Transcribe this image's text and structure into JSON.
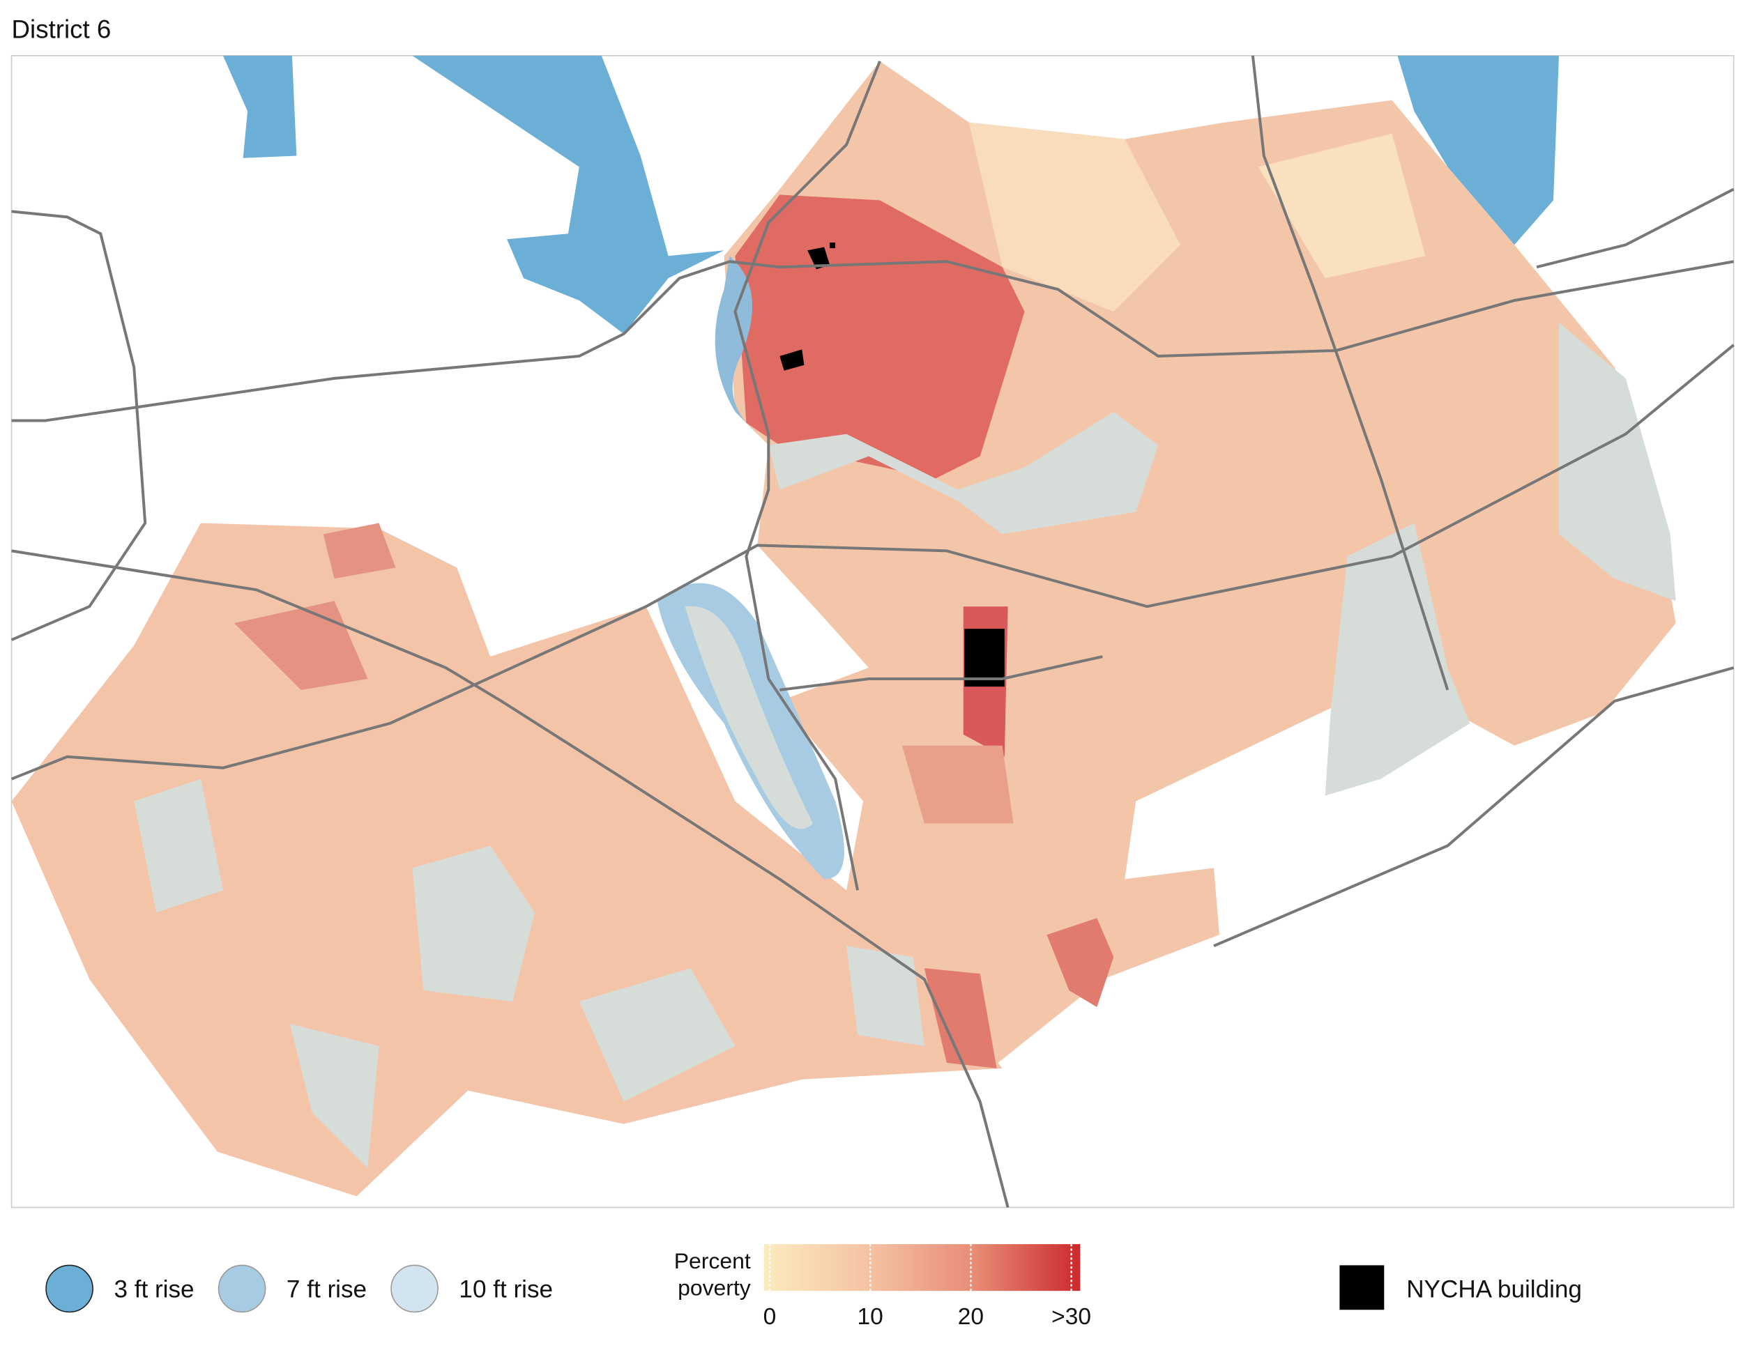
{
  "header": {
    "title": "District 6"
  },
  "legend": {
    "flood": [
      {
        "label": "3 ft rise",
        "color": "#6baed6"
      },
      {
        "label": "7 ft rise",
        "color": "#a6cbe3"
      },
      {
        "label": "10 ft rise",
        "color": "#d3e4f1"
      }
    ],
    "poverty": {
      "title": "Percent poverty",
      "ticks": [
        0,
        10,
        20,
        {
          "value": 30,
          "label": ">30"
        }
      ],
      "colors": [
        "#fcebbf",
        "#f4c2a2",
        "#e88c76",
        "#cb2a2c"
      ]
    },
    "nycha": {
      "label": "NYCHA building",
      "color": "#000000"
    }
  }
}
